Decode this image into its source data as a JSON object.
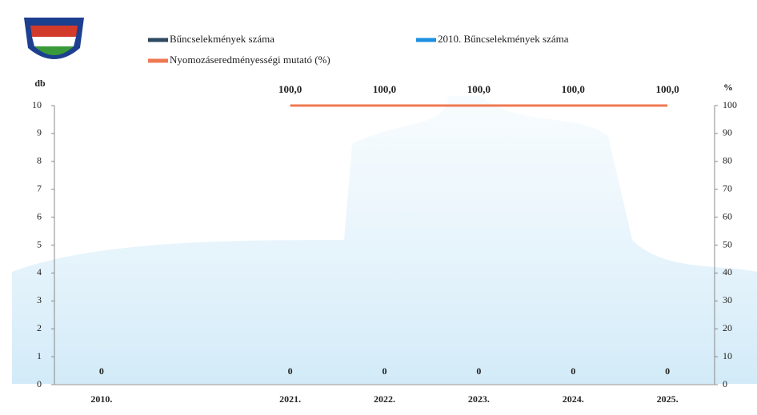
{
  "chart_data": {
    "type": "bar",
    "categories": [
      "2010.",
      null,
      "2021.",
      "2022.",
      "2023.",
      "2024.",
      "2025."
    ],
    "series": [
      {
        "name": "Bűncselekmények száma",
        "color": "#2e4a62",
        "type": "bar",
        "values": [
          null,
          null,
          0,
          0,
          0,
          0,
          0
        ]
      },
      {
        "name": "2010. Bűncselekmények száma",
        "color": "#1e90e0",
        "type": "bar",
        "values": [
          0,
          null,
          null,
          null,
          null,
          null,
          null
        ]
      },
      {
        "name": "Nyomozáseredményességi mutató (%)",
        "color": "#f07850",
        "type": "line",
        "axis": "y2",
        "values": [
          null,
          null,
          100,
          100,
          100,
          100,
          100
        ],
        "value_labels": [
          null,
          null,
          "100,0",
          "100,0",
          "100,0",
          "100,0",
          "100,0"
        ]
      }
    ],
    "ylabel": "db",
    "y2label": "%",
    "ylim": [
      0,
      10
    ],
    "yticks": [
      0,
      1,
      2,
      3,
      4,
      5,
      6,
      7,
      8,
      9,
      10
    ],
    "y2lim": [
      0,
      100
    ],
    "y2ticks": [
      0,
      10,
      20,
      30,
      40,
      50,
      60,
      70,
      80,
      90,
      100
    ]
  }
}
